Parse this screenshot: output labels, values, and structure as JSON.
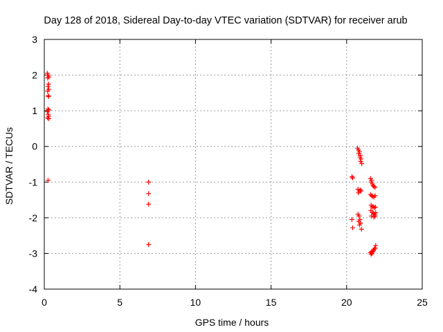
{
  "chart_data": {
    "type": "scatter",
    "title": "Day 128 of 2018, Sidereal Day-to-day VTEC variation (SDTVAR) for receiver arub",
    "xlabel": "GPS time / hours",
    "ylabel": "SDTVAR / TECUs",
    "xlim": [
      0,
      25
    ],
    "ylim": [
      -4,
      3
    ],
    "x_ticks": [
      "0",
      "5",
      "10",
      "15",
      "20",
      "25"
    ],
    "y_ticks": [
      "3",
      "2",
      "1",
      "0",
      "-1",
      "-2",
      "-3",
      "-4"
    ],
    "grid": true,
    "marker": "+",
    "color": "#ff0000",
    "series": [
      {
        "name": "SDTVAR",
        "points": [
          [
            0.2,
            2.05
          ],
          [
            0.25,
            2.0
          ],
          [
            0.3,
            1.95
          ],
          [
            0.22,
            1.92
          ],
          [
            0.28,
            1.75
          ],
          [
            0.24,
            1.68
          ],
          [
            0.3,
            1.6
          ],
          [
            0.22,
            1.55
          ],
          [
            0.26,
            1.42
          ],
          [
            0.28,
            1.4
          ],
          [
            0.24,
            1.05
          ],
          [
            0.3,
            1.02
          ],
          [
            0.2,
            0.98
          ],
          [
            0.26,
            0.9
          ],
          [
            0.28,
            0.85
          ],
          [
            0.22,
            0.8
          ],
          [
            0.3,
            0.78
          ],
          [
            0.25,
            -0.95
          ],
          [
            6.9,
            -1.0
          ],
          [
            6.9,
            -1.32
          ],
          [
            6.9,
            -1.62
          ],
          [
            6.9,
            -2.75
          ],
          [
            20.35,
            -0.85
          ],
          [
            20.4,
            -0.88
          ],
          [
            20.35,
            -2.05
          ],
          [
            20.4,
            -2.28
          ],
          [
            20.72,
            -0.05
          ],
          [
            20.78,
            -0.1
          ],
          [
            20.85,
            -0.15
          ],
          [
            20.8,
            -0.2
          ],
          [
            20.9,
            -0.25
          ],
          [
            20.88,
            -0.3
          ],
          [
            20.95,
            -0.35
          ],
          [
            20.92,
            -0.42
          ],
          [
            21.0,
            -0.48
          ],
          [
            20.75,
            -1.2
          ],
          [
            20.82,
            -1.25
          ],
          [
            20.9,
            -1.22
          ],
          [
            20.78,
            -1.3
          ],
          [
            20.95,
            -1.25
          ],
          [
            20.75,
            -1.9
          ],
          [
            20.82,
            -1.95
          ],
          [
            20.88,
            -2.05
          ],
          [
            20.8,
            -2.1
          ],
          [
            20.92,
            -2.15
          ],
          [
            20.85,
            -2.2
          ],
          [
            20.98,
            -2.32
          ],
          [
            21.58,
            -0.9
          ],
          [
            21.65,
            -0.95
          ],
          [
            21.7,
            -1.05
          ],
          [
            21.75,
            -1.1
          ],
          [
            21.8,
            -1.12
          ],
          [
            21.88,
            -1.15
          ],
          [
            21.62,
            -1.0
          ],
          [
            21.58,
            -1.35
          ],
          [
            21.65,
            -1.38
          ],
          [
            21.72,
            -1.4
          ],
          [
            21.8,
            -1.42
          ],
          [
            21.88,
            -1.38
          ],
          [
            21.62,
            -1.65
          ],
          [
            21.68,
            -1.7
          ],
          [
            21.75,
            -1.68
          ],
          [
            21.82,
            -1.72
          ],
          [
            21.9,
            -1.7
          ],
          [
            21.6,
            -1.8
          ],
          [
            21.7,
            -1.85
          ],
          [
            21.78,
            -1.88
          ],
          [
            21.85,
            -1.9
          ],
          [
            21.92,
            -1.86
          ],
          [
            21.65,
            -1.95
          ],
          [
            21.8,
            -1.98
          ],
          [
            21.88,
            -1.95
          ],
          [
            21.58,
            -2.98
          ],
          [
            21.62,
            -3.02
          ],
          [
            21.68,
            -3.0
          ],
          [
            21.72,
            -2.95
          ],
          [
            21.78,
            -2.92
          ],
          [
            21.82,
            -2.88
          ],
          [
            21.88,
            -2.85
          ],
          [
            21.92,
            -2.78
          ],
          [
            21.65,
            -2.95
          ]
        ]
      }
    ]
  }
}
